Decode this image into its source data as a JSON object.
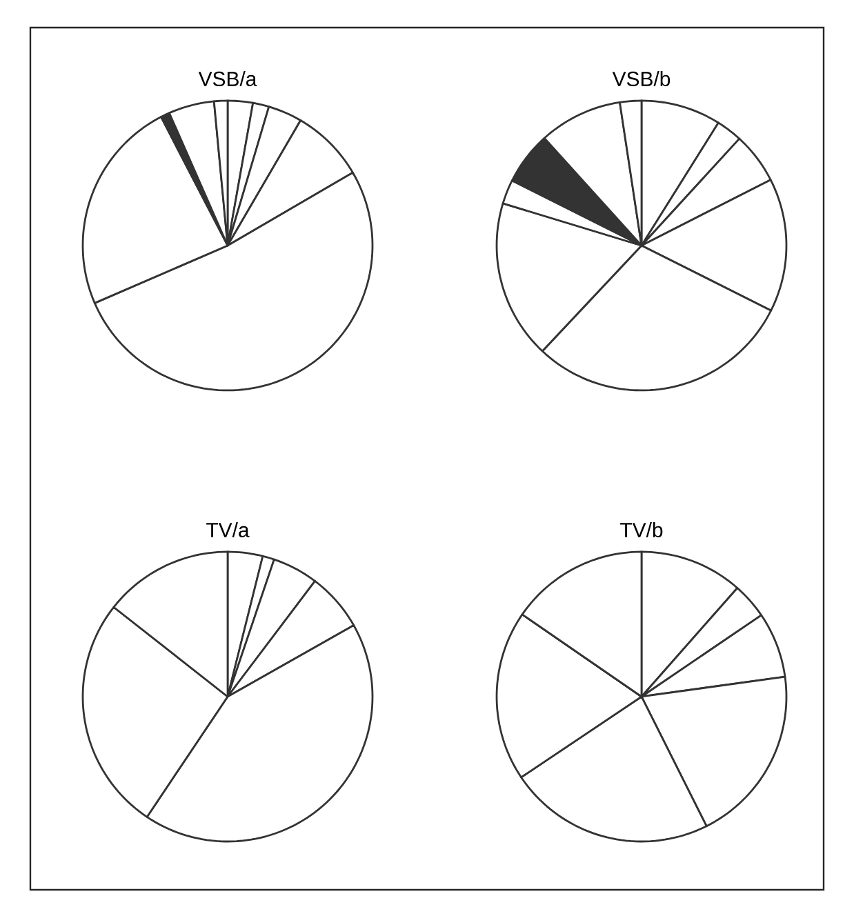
{
  "chart_data": [
    {
      "type": "pie",
      "title": "VSB/a",
      "categories": [
        null,
        null,
        null,
        null,
        null,
        null,
        null,
        null,
        null
      ],
      "values": [
        2.8,
        1.8,
        3.8,
        8.2,
        51.9,
        23.9,
        1.0,
        5.1,
        1.5
      ],
      "colors": [
        "#ffffff",
        "#ffffff",
        "#ffffff",
        "#ffffff",
        "#ffffff",
        "#ffffff",
        "#333333",
        "#ffffff",
        "#ffffff"
      ]
    },
    {
      "type": "pie",
      "title": "VSB/b",
      "categories": [
        null,
        null,
        null,
        null,
        null,
        null,
        null,
        null,
        null,
        null
      ],
      "values": [
        8.9,
        2.9,
        5.7,
        14.9,
        29.6,
        17.7,
        2.7,
        5.9,
        9.3,
        2.4
      ],
      "colors": [
        "#ffffff",
        "#ffffff",
        "#ffffff",
        "#ffffff",
        "#ffffff",
        "#ffffff",
        "#ffffff",
        "#333333",
        "#ffffff",
        "#ffffff"
      ]
    },
    {
      "type": "pie",
      "title": "TV/a",
      "categories": [
        null,
        null,
        null,
        null,
        null,
        null,
        null
      ],
      "values": [
        3.9,
        1.3,
        5.1,
        6.5,
        42.6,
        26.2,
        14.4
      ],
      "colors": [
        "#ffffff",
        "#ffffff",
        "#ffffff",
        "#ffffff",
        "#ffffff",
        "#ffffff",
        "#ffffff"
      ]
    },
    {
      "type": "pie",
      "title": "TV/b",
      "categories": [
        null,
        null,
        null,
        null,
        null,
        null,
        null
      ],
      "values": [
        11.5,
        4.0,
        7.3,
        19.8,
        23.0,
        19.0,
        15.4
      ],
      "colors": [
        "#ffffff",
        "#ffffff",
        "#ffffff",
        "#ffffff",
        "#ffffff",
        "#ffffff",
        "#ffffff"
      ]
    }
  ]
}
